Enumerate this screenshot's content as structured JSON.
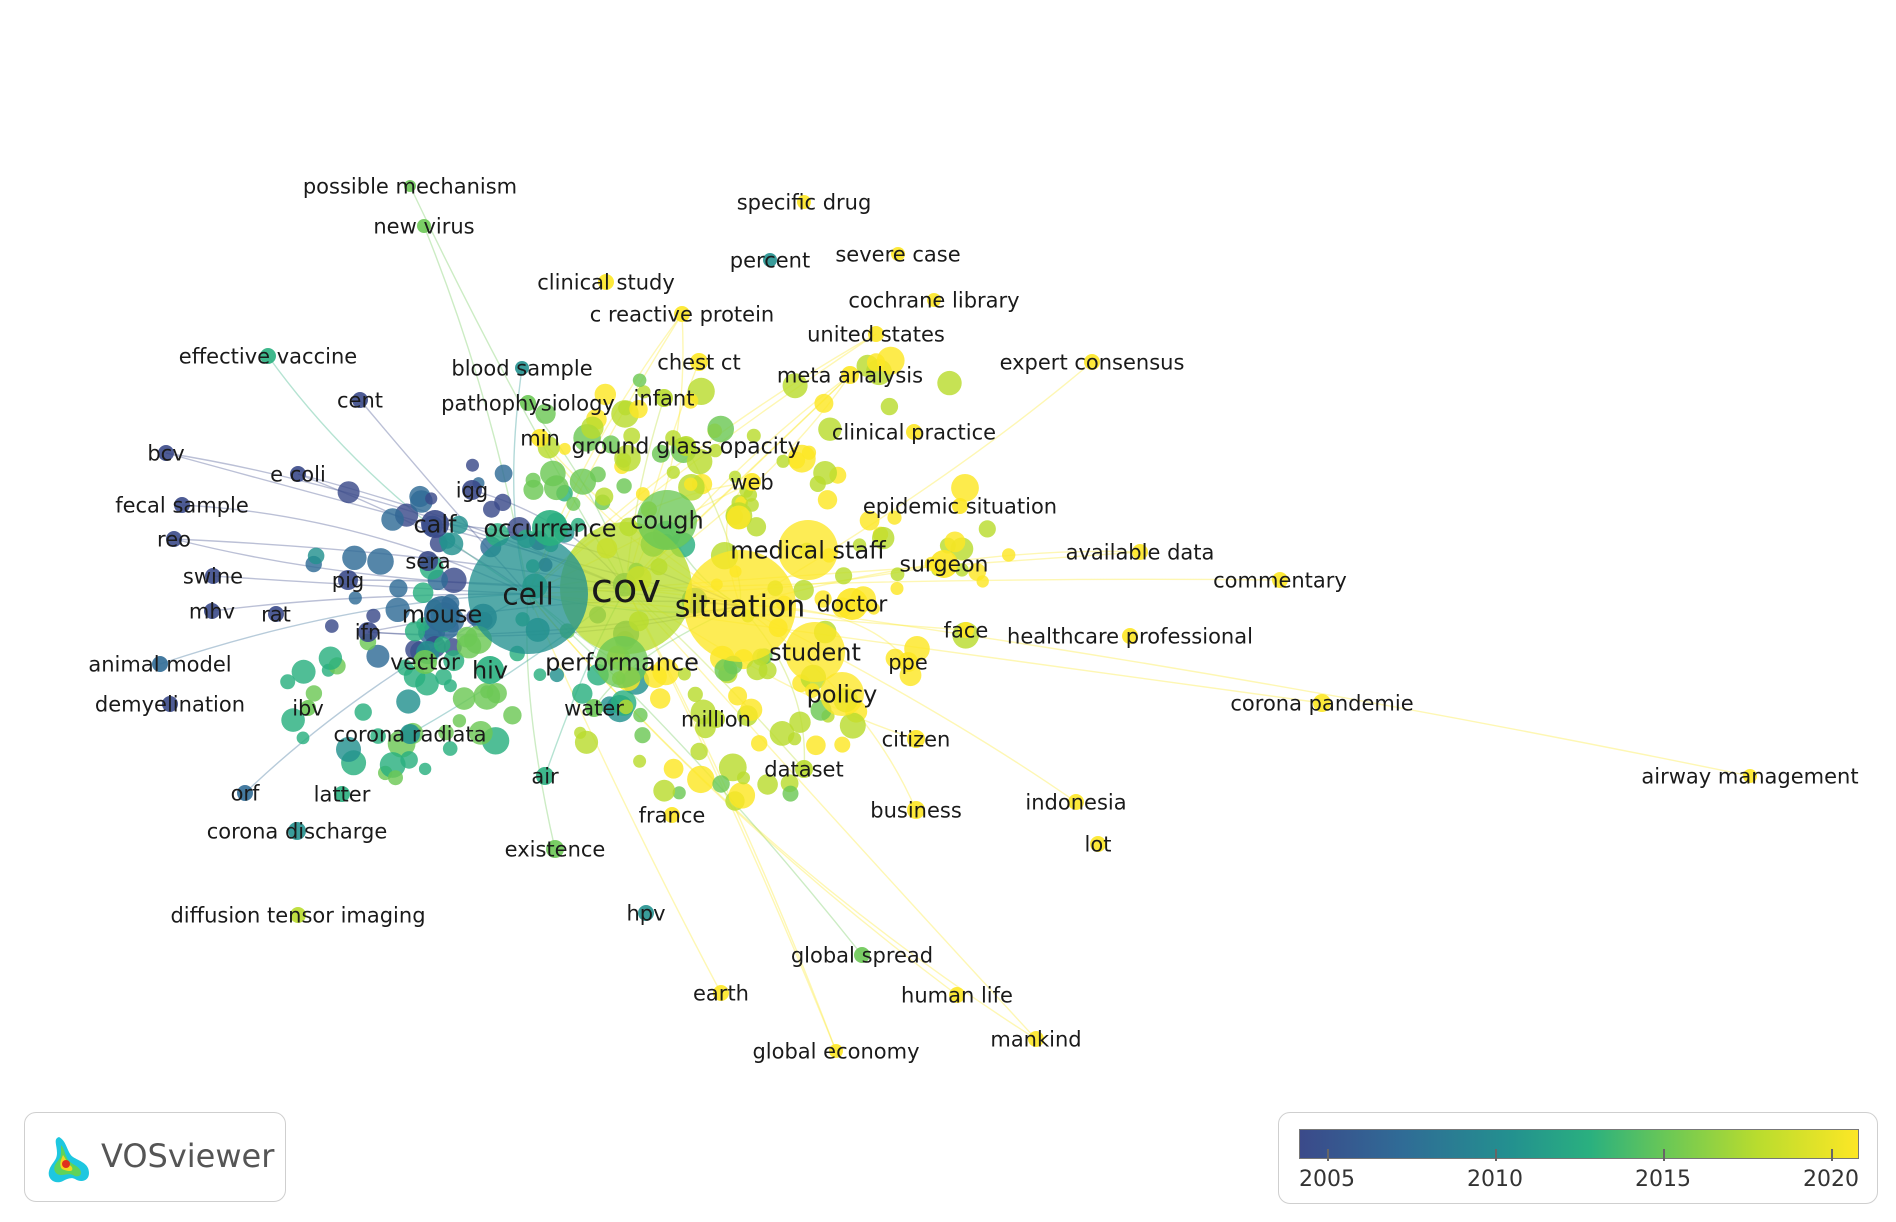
{
  "app": {
    "logo_text": "VOSviewer"
  },
  "legend": {
    "ticks": [
      "2005",
      "2010",
      "2015",
      "2020"
    ],
    "colors": [
      "#3b4a8a",
      "#306b96",
      "#23918f",
      "#2ab07f",
      "#6cc855",
      "#b9dc2e",
      "#fde725"
    ]
  },
  "keywords": [
    "cov",
    "cell",
    "situation",
    "medical staff",
    "cough",
    "occurrence",
    "performance",
    "student",
    "policy",
    "mouse",
    "calf",
    "hiv",
    "vector",
    "doctor",
    "surgeon",
    "ground glass opacity",
    "possible mechanism",
    "new virus",
    "specific drug",
    "severe case",
    "percent",
    "clinical study",
    "cochrane library",
    "c reactive protein",
    "united states",
    "effective vaccine",
    "expert consensus",
    "blood sample",
    "chest ct",
    "meta analysis",
    "cent",
    "pathophysiology",
    "infant",
    "clinical practice",
    "min",
    "bcv",
    "e coli",
    "web",
    "fecal sample",
    "igg",
    "epidemic situation",
    "reo",
    "available data",
    "sera",
    "swine",
    "pig",
    "commentary",
    "mhv",
    "rat",
    "ifn",
    "face",
    "healthcare professional",
    "animal model",
    "ppe",
    "demyelination",
    "ibv",
    "water",
    "million",
    "corona pandemie",
    "corona radiata",
    "citizen",
    "dataset",
    "air",
    "airway management",
    "orf",
    "latter",
    "indonesia",
    "france",
    "business",
    "corona discharge",
    "lot",
    "existence",
    "diffusion tensor imaging",
    "hpv",
    "global spread",
    "earth",
    "human life",
    "mankind",
    "global economy"
  ]
}
